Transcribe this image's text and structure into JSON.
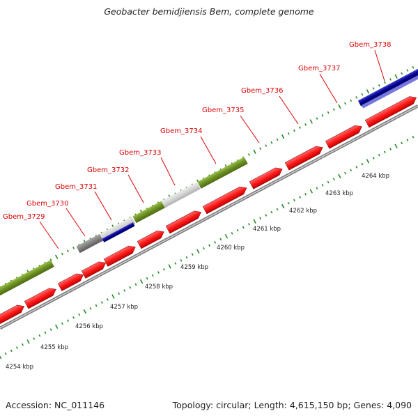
{
  "title": "Geobacter bemidjiensis Bem, complete genome",
  "footer": {
    "accession": "Accession: NC_011146",
    "summary": "Topology: circular; Length: 4,615,150 bp; Genes: 4,090"
  },
  "colors": {
    "cds": "#ff0000",
    "olive": "#6b8e23",
    "navy": "#00008b",
    "gray": "#808080",
    "lightgray": "#d3d3d3",
    "backbone": "#a9a9a9",
    "tick": "#228b22",
    "label": "#dd0000"
  },
  "kbp_labels": [
    "4254 kbp",
    "4255 kbp",
    "4256 kbp",
    "4257 kbp",
    "4258 kbp",
    "4259 kbp",
    "4260 kbp",
    "4261 kbp",
    "4262 kbp",
    "4263 kbp",
    "4264 kbp"
  ],
  "gene_labels": [
    "Gbem_3729",
    "Gbem_3730",
    "Gbem_3731",
    "Gbem_3732",
    "Gbem_3733",
    "Gbem_3734",
    "Gbem_3735",
    "Gbem_3736",
    "Gbem_3737",
    "Gbem_3738"
  ]
}
